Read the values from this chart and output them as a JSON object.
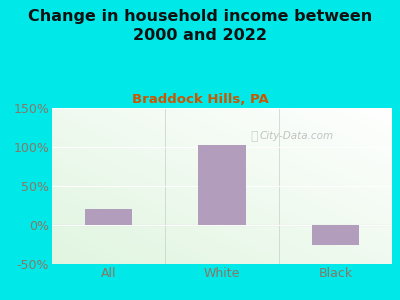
{
  "title": "Change in household income between\n2000 and 2022",
  "subtitle": "Braddock Hills, PA",
  "categories": [
    "All",
    "White",
    "Black"
  ],
  "values": [
    20,
    102,
    -25
  ],
  "bar_color": "#b39dbd",
  "outer_bg": "#00e8e8",
  "title_color": "#111111",
  "subtitle_color": "#cc5500",
  "tick_label_color": "#887766",
  "ylim": [
    -50,
    150
  ],
  "yticks": [
    -50,
    0,
    50,
    100,
    150
  ],
  "ytick_labels": [
    "-50%",
    "0%",
    "50%",
    "100%",
    "150%"
  ],
  "watermark": "City-Data.com",
  "title_fontsize": 11.5,
  "subtitle_fontsize": 9.5,
  "tick_fontsize": 9
}
